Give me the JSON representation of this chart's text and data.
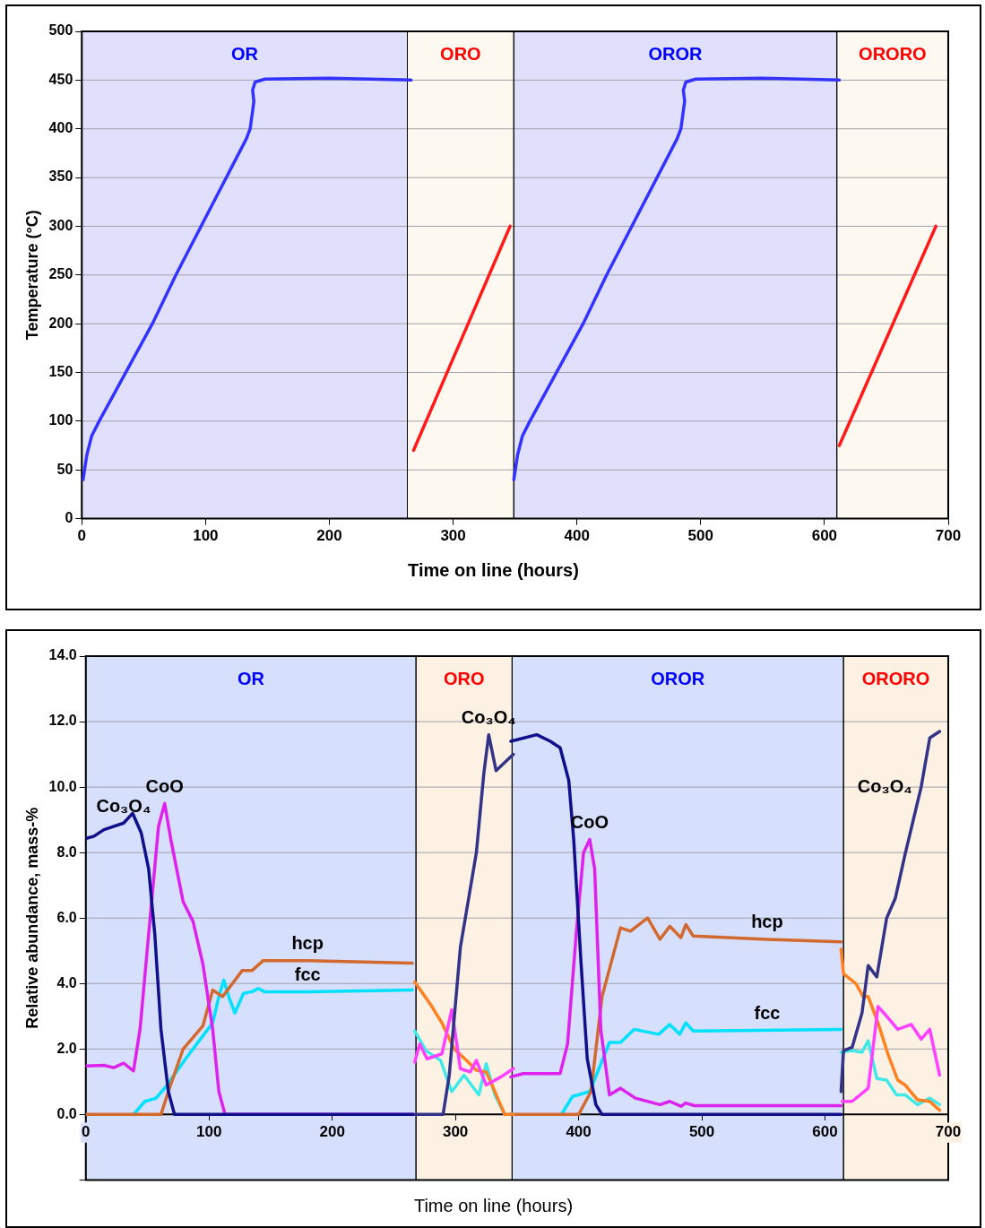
{
  "chart_data": [
    {
      "type": "line",
      "xlabel": "Time on line (hours)",
      "ylabel": "Temperature (°C)",
      "xlim": [
        0,
        700
      ],
      "ylim": [
        0,
        500
      ],
      "xticks": [
        0,
        100,
        200,
        300,
        400,
        500,
        600,
        700
      ],
      "yticks": [
        0,
        50,
        100,
        150,
        200,
        250,
        300,
        350,
        400,
        450,
        500
      ],
      "grid": "y",
      "legend": false,
      "bands": [
        {
          "axis": "x",
          "from": 0,
          "to": 263,
          "label": "OR",
          "color": "#e0e0fc"
        },
        {
          "axis": "x",
          "from": 263,
          "to": 349,
          "label": "ORO",
          "color": "#fdf8f0"
        },
        {
          "axis": "x",
          "from": 349,
          "to": 610,
          "label": "OROR",
          "color": "#e0e0fc"
        },
        {
          "axis": "x",
          "from": 610,
          "to": 700,
          "label": "ORORO",
          "color": "#fdf8f0"
        }
      ],
      "series": [
        {
          "color": "#3333ff",
          "x": [
            1,
            4,
            8,
            14,
            57,
            76,
            133,
            136,
            139,
            138,
            140,
            148,
            200,
            266
          ],
          "values": [
            40,
            65,
            85,
            100,
            200,
            250,
            390,
            400,
            428,
            440,
            448,
            451,
            452,
            450
          ]
        },
        {
          "color": "#ff1a1a",
          "x": [
            268,
            346
          ],
          "values": [
            70,
            300
          ]
        },
        {
          "color": "#3333ff",
          "x": [
            349,
            352,
            356,
            362,
            405,
            424,
            481,
            484,
            487,
            486,
            488,
            496,
            550,
            612
          ],
          "values": [
            40,
            65,
            85,
            100,
            200,
            250,
            390,
            400,
            428,
            440,
            448,
            451,
            452,
            450
          ]
        },
        {
          "color": "#ff1a1a",
          "x": [
            612,
            690
          ],
          "values": [
            75,
            300
          ]
        }
      ]
    },
    {
      "type": "line",
      "xlabel": "Time on line (hours)",
      "ylabel": "Relative abundance, mass-%",
      "xlim": [
        0,
        700
      ],
      "ylim": [
        -2,
        14
      ],
      "xticks": [
        0,
        100,
        200,
        300,
        400,
        500,
        600,
        700
      ],
      "yticks": [
        {
          "value": -2,
          "label": null
        },
        {
          "value": 0,
          "label": "0.0"
        },
        {
          "value": 2,
          "label": "2.0"
        },
        {
          "value": 4,
          "label": "4.0"
        },
        {
          "value": 6,
          "label": "6.0"
        },
        {
          "value": 8,
          "label": "8.0"
        },
        {
          "value": 10,
          "label": "10.0"
        },
        {
          "value": 12,
          "label": "12.0"
        },
        {
          "value": 14,
          "label": "14.0"
        }
      ],
      "grid": "y",
      "legend": false,
      "bands": [
        {
          "axis": "x",
          "from": 0,
          "to": 268,
          "label": "OR",
          "color": "#d6dffc"
        },
        {
          "axis": "x",
          "from": 268,
          "to": 346,
          "label": "ORO",
          "color": "#fdf1e4"
        },
        {
          "axis": "x",
          "from": 346,
          "to": 615,
          "label": "OROR",
          "color": "#d6dffc"
        },
        {
          "axis": "x",
          "from": 615,
          "to": 700,
          "label": "ORORO",
          "color": "#fdf1e4"
        }
      ],
      "annotations": [
        {
          "text": "Co₃O₄",
          "x": 30.7,
          "y": 8.9
        },
        {
          "text": "CoO",
          "x": 64,
          "y": 9.5
        },
        {
          "text": "hcp",
          "x": 180,
          "y": 4.7
        },
        {
          "text": "fcc",
          "x": 180,
          "y": 3.75
        },
        {
          "text": "Co₃O₄",
          "x": 327,
          "y": 11.6
        },
        {
          "text": "CoO",
          "x": 409,
          "y": 8.4
        },
        {
          "text": "hcp",
          "x": 553,
          "y": 5.35
        },
        {
          "text": "fcc",
          "x": 553,
          "y": 2.57
        },
        {
          "text": "Co₃O₄",
          "x": 678,
          "y": 10.0
        }
      ],
      "series": [
        {
          "color": "#10108a",
          "x": [
            0,
            6.7,
            14.7,
            30.7,
            38,
            45,
            51,
            56,
            61,
            67,
            72,
            79,
            266
          ],
          "values": [
            8.43,
            8.5,
            8.7,
            8.9,
            9.2,
            8.6,
            7.5,
            5.5,
            2.6,
            0.7,
            0,
            0,
            0
          ]
        },
        {
          "color": "#dd22ee",
          "x": [
            0,
            14.7,
            22.7,
            30.7,
            38.7,
            44,
            51,
            59,
            64,
            69,
            79,
            87,
            95,
            103,
            108,
            113,
            119,
            266
          ],
          "values": [
            1.48,
            1.5,
            1.43,
            1.57,
            1.33,
            2.6,
            5.5,
            8.8,
            9.5,
            8.4,
            6.5,
            5.9,
            4.6,
            2.6,
            0.7,
            0,
            0,
            0
          ]
        },
        {
          "color": "#d2692e",
          "x": [
            0,
            56,
            61,
            67,
            79,
            95,
            103,
            111,
            127,
            135,
            144,
            180,
            265
          ],
          "values": [
            0,
            0,
            0,
            0.7,
            2.0,
            2.7,
            3.8,
            3.6,
            4.4,
            4.4,
            4.7,
            4.7,
            4.62
          ]
        },
        {
          "color": "#00e0ff",
          "x": [
            38.7,
            48,
            57,
            65,
            81,
            92,
            103,
            108,
            112,
            116,
            121,
            128,
            135,
            140,
            145,
            180,
            265
          ],
          "values": [
            0,
            0.4,
            0.5,
            0.85,
            1.7,
            2.25,
            2.8,
            3.6,
            4.1,
            3.6,
            3.1,
            3.7,
            3.75,
            3.85,
            3.75,
            3.75,
            3.8
          ]
        },
        {
          "color": "#333388",
          "x": [
            268,
            283,
            290,
            295,
            304,
            317,
            323,
            327,
            333,
            347
          ],
          "values": [
            0,
            0,
            0,
            1.2,
            5.1,
            8.0,
            10.4,
            11.6,
            10.5,
            11.0
          ]
        },
        {
          "color": "#ff40ff",
          "x": [
            267,
            271,
            277,
            289,
            297,
            304,
            312,
            317,
            325,
            337,
            347
          ],
          "values": [
            1.6,
            2.15,
            1.7,
            1.85,
            3.2,
            1.4,
            1.3,
            1.65,
            0.9,
            1.15,
            1.4
          ]
        },
        {
          "color": "#ff8020",
          "x": [
            267,
            280,
            289,
            299,
            309,
            317,
            325,
            332,
            340,
            347
          ],
          "values": [
            4.05,
            3.35,
            2.8,
            2.0,
            1.65,
            1.35,
            1.3,
            0.7,
            0,
            0
          ]
        },
        {
          "color": "#40e8e8",
          "x": [
            267,
            276,
            288,
            297,
            307,
            319,
            325,
            332,
            340,
            347
          ],
          "values": [
            2.55,
            1.95,
            1.65,
            0.7,
            1.2,
            0.6,
            1.55,
            0.6,
            0,
            0
          ]
        },
        {
          "color": "#10108a",
          "x": [
            345,
            366,
            377,
            385,
            392,
            396,
            402,
            407,
            414,
            419,
            427,
            613
          ],
          "values": [
            11.4,
            11.6,
            11.4,
            11.2,
            10.2,
            8.4,
            4.6,
            1.7,
            0.3,
            0,
            0,
            0
          ]
        },
        {
          "color": "#dd22ee",
          "x": [
            345,
            355,
            369,
            385,
            391,
            398,
            404,
            409,
            413,
            418,
            425,
            434,
            446,
            466,
            474,
            483,
            487,
            494,
            613
          ],
          "values": [
            1.15,
            1.25,
            1.25,
            1.25,
            2.15,
            5.5,
            8.0,
            8.4,
            7.5,
            2.6,
            0.6,
            0.8,
            0.5,
            0.3,
            0.4,
            0.25,
            0.35,
            0.27,
            0.27
          ]
        },
        {
          "color": "#d2692e",
          "x": [
            345,
            393,
            400,
            410,
            419,
            434,
            442,
            456,
            466,
            474,
            483,
            487,
            493,
            553,
            613
          ],
          "values": [
            0,
            0,
            0,
            0.7,
            3.6,
            5.7,
            5.6,
            6.0,
            5.35,
            5.75,
            5.4,
            5.8,
            5.45,
            5.35,
            5.27
          ]
        },
        {
          "color": "#00e0ff",
          "x": [
            386,
            395,
            409,
            425,
            434,
            445,
            465,
            474,
            482,
            487,
            493,
            613
          ],
          "values": [
            0,
            0.55,
            0.7,
            2.2,
            2.2,
            2.6,
            2.45,
            2.75,
            2.45,
            2.8,
            2.55,
            2.6
          ]
        },
        {
          "color": "#333388",
          "x": [
            613,
            615,
            622,
            630,
            635,
            642,
            650,
            657,
            665,
            678,
            685,
            693
          ],
          "values": [
            0.7,
            1.95,
            2.05,
            3.1,
            4.55,
            4.2,
            6.0,
            6.6,
            7.95,
            10.0,
            11.5,
            11.7
          ]
        },
        {
          "color": "#ff40ff",
          "x": [
            614,
            622,
            635,
            643,
            650,
            659,
            670,
            678,
            685,
            693
          ],
          "values": [
            0.4,
            0.4,
            0.8,
            3.3,
            3.0,
            2.6,
            2.75,
            2.3,
            2.6,
            1.2
          ]
        },
        {
          "color": "#ff8020",
          "x": [
            613,
            615,
            625,
            631,
            635,
            643,
            651,
            659,
            665,
            675,
            685,
            693
          ],
          "values": [
            5.05,
            4.3,
            4.0,
            3.6,
            3.6,
            2.8,
            1.85,
            1.05,
            0.9,
            0.45,
            0.4,
            0.13
          ]
        },
        {
          "color": "#40e8e8",
          "x": [
            613,
            622,
            630,
            635,
            642,
            650,
            658,
            665,
            675,
            685,
            693
          ],
          "values": [
            1.9,
            1.95,
            1.9,
            2.25,
            1.1,
            1.05,
            0.6,
            0.6,
            0.3,
            0.5,
            0.3
          ]
        }
      ]
    }
  ]
}
